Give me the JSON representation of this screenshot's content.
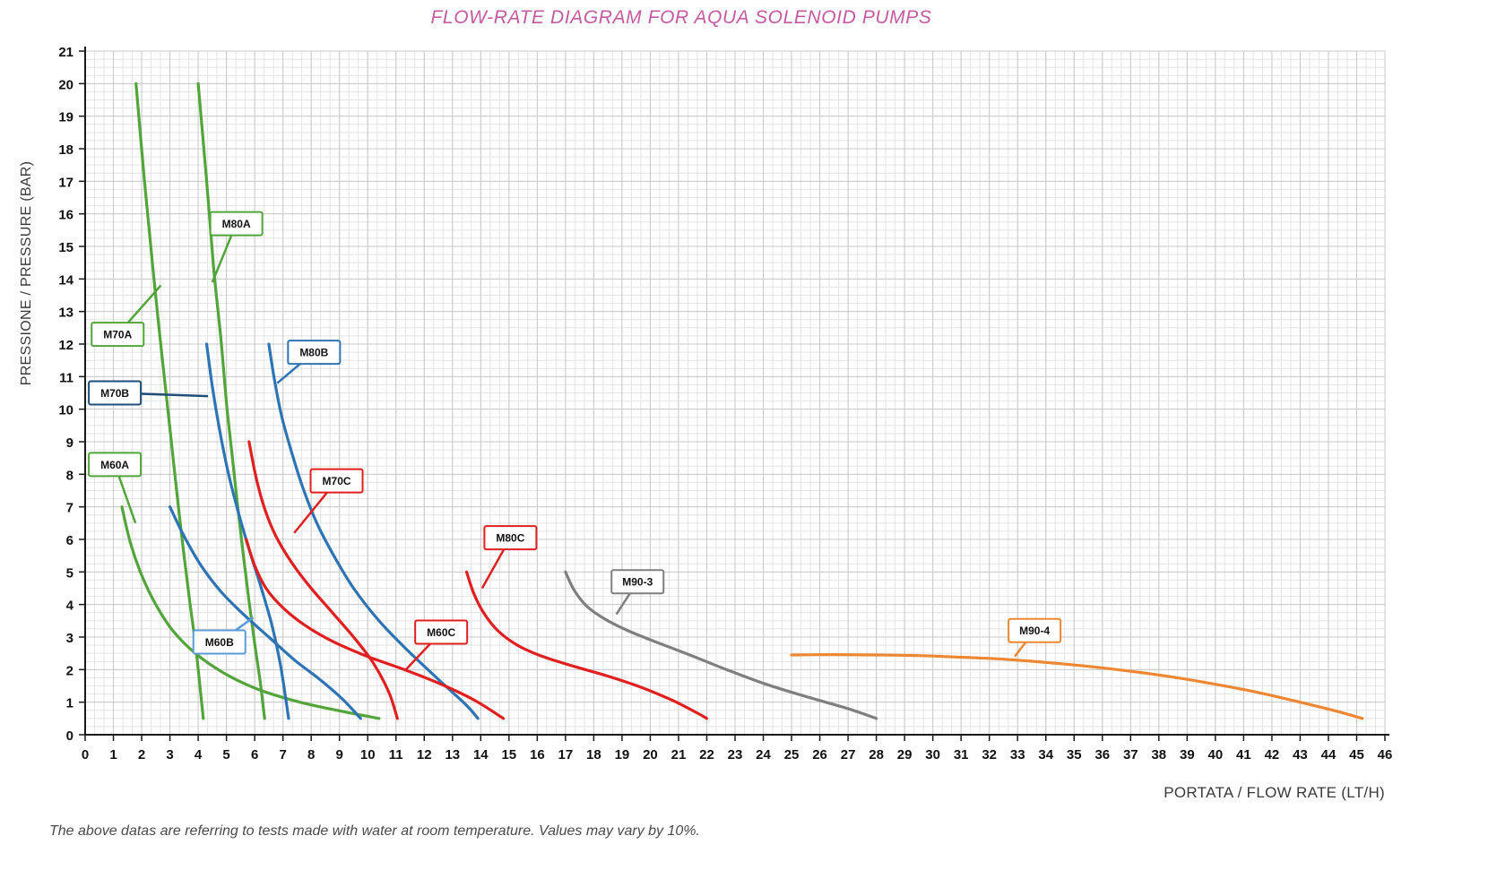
{
  "title": "FLOW-RATE DIAGRAM FOR AQUA SOLENOID PUMPS",
  "footnote": "The above datas are referring to tests made with water at room temperature. Values may vary by 10%.",
  "accent_colors": {
    "title_pink": "#c45a9f",
    "green": "#52a43b",
    "blue": "#2e74b5",
    "navy": "#1f4e79",
    "red": "#e01f1f",
    "gray": "#7f7f7f",
    "orange": "#ee8733"
  },
  "chart_data": {
    "type": "line",
    "title": "FLOW-RATE DIAGRAM FOR AQUA SOLENOID PUMPS",
    "xlabel": "PORTATA / FLOW RATE (LT/H)",
    "ylabel": "PRESSIONE / PRESSURE (BAR)",
    "xlim": [
      0,
      46
    ],
    "ylim": [
      0,
      21
    ],
    "x_tick_step": 1,
    "y_tick_step": 1,
    "grid": true,
    "legend_position": "labels-on-curves",
    "series": [
      {
        "name": "M60A",
        "color": "#52a43b",
        "label": {
          "at": [
            1.05,
            8.3
          ],
          "target": [
            1.78,
            6.5
          ]
        },
        "points": [
          [
            1.3,
            7
          ],
          [
            1.6,
            5.9
          ],
          [
            2,
            4.9
          ],
          [
            2.5,
            4
          ],
          [
            3.1,
            3.2
          ],
          [
            3.9,
            2.5
          ],
          [
            4.9,
            1.9
          ],
          [
            6.1,
            1.4
          ],
          [
            7.6,
            1
          ],
          [
            9.2,
            0.7
          ],
          [
            10.4,
            0.5
          ]
        ]
      },
      {
        "name": "M70A",
        "color": "#52a43b",
        "label": {
          "at": [
            1.15,
            12.3
          ],
          "target": [
            2.68,
            13.8
          ]
        },
        "points": [
          [
            1.8,
            20
          ],
          [
            2.1,
            17
          ],
          [
            2.4,
            14.3
          ],
          [
            2.65,
            12.2
          ],
          [
            2.9,
            10.2
          ],
          [
            3.1,
            8.6
          ],
          [
            3.3,
            7
          ],
          [
            3.5,
            5.5
          ],
          [
            3.7,
            4.1
          ],
          [
            3.9,
            2.8
          ],
          [
            4.05,
            1.6
          ],
          [
            4.18,
            0.5
          ]
        ]
      },
      {
        "name": "M80A",
        "color": "#52a43b",
        "label": {
          "at": [
            5.35,
            15.7
          ],
          "target": [
            4.5,
            13.9
          ]
        },
        "points": [
          [
            4,
            20
          ],
          [
            4.3,
            17
          ],
          [
            4.55,
            14.3
          ],
          [
            4.8,
            12.2
          ],
          [
            5,
            10.2
          ],
          [
            5.2,
            8.6
          ],
          [
            5.4,
            7
          ],
          [
            5.6,
            5.5
          ],
          [
            5.8,
            4.1
          ],
          [
            6,
            2.8
          ],
          [
            6.2,
            1.6
          ],
          [
            6.35,
            0.5
          ]
        ]
      },
      {
        "name": "M60B",
        "color": "#2e74b5",
        "label_border": "#5b9bd5",
        "label": {
          "at": [
            4.75,
            2.85
          ],
          "target": [
            5.95,
            3.6
          ]
        },
        "points": [
          [
            3,
            7
          ],
          [
            3.5,
            6.1
          ],
          [
            4.1,
            5.2
          ],
          [
            4.8,
            4.4
          ],
          [
            5.6,
            3.7
          ],
          [
            6.5,
            3
          ],
          [
            7.4,
            2.3
          ],
          [
            8.3,
            1.7
          ],
          [
            9.1,
            1.1
          ],
          [
            9.75,
            0.5
          ]
        ]
      },
      {
        "name": "M70B",
        "color": "#2e74b5",
        "label_border": "#1f4e79",
        "label": {
          "at": [
            1.05,
            10.5
          ],
          "target": [
            4.35,
            10.4
          ]
        },
        "points": [
          [
            4.3,
            12
          ],
          [
            4.5,
            10.7
          ],
          [
            4.75,
            9.4
          ],
          [
            5.05,
            8.1
          ],
          [
            5.4,
            6.9
          ],
          [
            5.8,
            5.7
          ],
          [
            6.2,
            4.6
          ],
          [
            6.6,
            3.4
          ],
          [
            6.9,
            2.2
          ],
          [
            7.1,
            1.1
          ],
          [
            7.2,
            0.5
          ]
        ]
      },
      {
        "name": "M80B",
        "color": "#2e74b5",
        "label": {
          "at": [
            8.1,
            11.75
          ],
          "target": [
            6.8,
            10.8
          ]
        },
        "points": [
          [
            6.5,
            12
          ],
          [
            6.7,
            10.9
          ],
          [
            6.95,
            9.8
          ],
          [
            7.3,
            8.7
          ],
          [
            7.7,
            7.6
          ],
          [
            8.2,
            6.5
          ],
          [
            8.8,
            5.5
          ],
          [
            9.5,
            4.5
          ],
          [
            10.4,
            3.5
          ],
          [
            11.4,
            2.6
          ],
          [
            12.5,
            1.7
          ],
          [
            13.5,
            0.9
          ],
          [
            13.9,
            0.5
          ]
        ]
      },
      {
        "name": "M60C",
        "color": "#e01f1f",
        "label": {
          "at": [
            12.6,
            3.15
          ],
          "target": [
            11.35,
            2
          ]
        },
        "points": [
          [
            5.7,
            6
          ],
          [
            6,
            5.2
          ],
          [
            6.4,
            4.5
          ],
          [
            7,
            3.9
          ],
          [
            7.8,
            3.35
          ],
          [
            8.8,
            2.85
          ],
          [
            10,
            2.4
          ],
          [
            11.3,
            2
          ],
          [
            12.6,
            1.55
          ],
          [
            13.8,
            1.05
          ],
          [
            14.8,
            0.5
          ]
        ]
      },
      {
        "name": "M70C",
        "color": "#e01f1f",
        "label": {
          "at": [
            8.9,
            7.8
          ],
          "target": [
            7.4,
            6.2
          ]
        },
        "points": [
          [
            5.8,
            9
          ],
          [
            6.05,
            7.9
          ],
          [
            6.35,
            6.95
          ],
          [
            6.75,
            6.1
          ],
          [
            7.3,
            5.3
          ],
          [
            7.95,
            4.55
          ],
          [
            8.7,
            3.8
          ],
          [
            9.5,
            3
          ],
          [
            10.2,
            2.2
          ],
          [
            10.75,
            1.3
          ],
          [
            11.05,
            0.5
          ]
        ]
      },
      {
        "name": "M80C",
        "color": "#e01f1f",
        "label": {
          "at": [
            15.05,
            6.05
          ],
          "target": [
            14.05,
            4.5
          ]
        },
        "points": [
          [
            13.5,
            5
          ],
          [
            13.75,
            4.35
          ],
          [
            14.1,
            3.75
          ],
          [
            14.6,
            3.2
          ],
          [
            15.3,
            2.75
          ],
          [
            16.2,
            2.4
          ],
          [
            17.3,
            2.1
          ],
          [
            18.5,
            1.8
          ],
          [
            19.7,
            1.45
          ],
          [
            20.8,
            1.05
          ],
          [
            21.7,
            0.65
          ],
          [
            22,
            0.5
          ]
        ]
      },
      {
        "name": "M90-3",
        "color": "#7f7f7f",
        "label": {
          "at": [
            19.55,
            4.7
          ],
          "target": [
            18.8,
            3.7
          ]
        },
        "points": [
          [
            17,
            5
          ],
          [
            17.3,
            4.45
          ],
          [
            17.75,
            3.95
          ],
          [
            18.4,
            3.55
          ],
          [
            19.2,
            3.2
          ],
          [
            20.2,
            2.85
          ],
          [
            21.4,
            2.45
          ],
          [
            22.7,
            2
          ],
          [
            24.1,
            1.55
          ],
          [
            25.6,
            1.15
          ],
          [
            27,
            0.8
          ],
          [
            28,
            0.5
          ]
        ]
      },
      {
        "name": "M90-4",
        "color": "#ee8733",
        "label": {
          "at": [
            33.6,
            3.2
          ],
          "target": [
            32.9,
            2.4
          ]
        },
        "points": [
          [
            25,
            2.45
          ],
          [
            26.5,
            2.46
          ],
          [
            28,
            2.45
          ],
          [
            29.5,
            2.43
          ],
          [
            31,
            2.38
          ],
          [
            32.5,
            2.32
          ],
          [
            34,
            2.22
          ],
          [
            35.5,
            2.1
          ],
          [
            37,
            1.95
          ],
          [
            38.5,
            1.77
          ],
          [
            40,
            1.55
          ],
          [
            41.5,
            1.3
          ],
          [
            43,
            1
          ],
          [
            44.3,
            0.72
          ],
          [
            45.2,
            0.5
          ]
        ]
      }
    ]
  }
}
